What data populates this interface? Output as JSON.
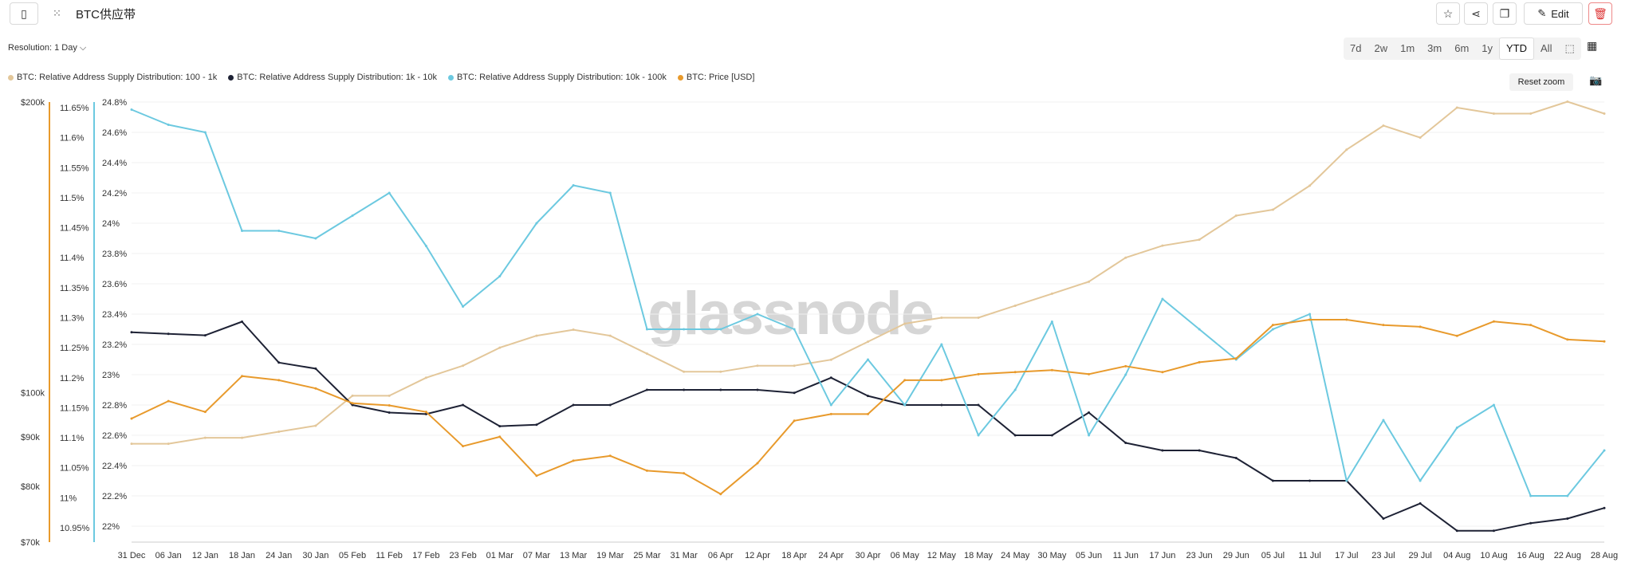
{
  "header": {
    "title": "BTC供应带",
    "edit_label": "Edit"
  },
  "resolution_label": "Resolution: 1 Day",
  "time_ranges": [
    "7d",
    "2w",
    "1m",
    "3m",
    "6m",
    "1y",
    "YTD",
    "All"
  ],
  "active_range": "YTD",
  "reset_zoom_label": "Reset zoom",
  "watermark": "glassnode",
  "chart_data": {
    "type": "line",
    "x_ticks": [
      "31 Dec",
      "06 Jan",
      "12 Jan",
      "18 Jan",
      "24 Jan",
      "30 Jan",
      "05 Feb",
      "11 Feb",
      "17 Feb",
      "23 Feb",
      "01 Mar",
      "07 Mar",
      "13 Mar",
      "19 Mar",
      "25 Mar",
      "31 Mar",
      "06 Apr",
      "12 Apr",
      "18 Apr",
      "24 Apr",
      "30 Apr",
      "06 May",
      "12 May",
      "18 May",
      "24 May",
      "30 May",
      "05 Jun",
      "11 Jun",
      "17 Jun",
      "23 Jun",
      "29 Jun",
      "05 Jul",
      "11 Jul",
      "17 Jul",
      "23 Jul",
      "29 Jul",
      "04 Aug",
      "10 Aug",
      "16 Aug",
      "22 Aug",
      "28 Aug"
    ],
    "y_price_ticks": [
      "$70k",
      "$80k",
      "$90k",
      "$100k",
      "$200k"
    ],
    "y_mid_ticks": [
      "10.95%",
      "11%",
      "11.05%",
      "11.1%",
      "11.15%",
      "11.2%",
      "11.25%",
      "11.3%",
      "11.35%",
      "11.4%",
      "11.45%",
      "11.5%",
      "11.55%",
      "11.6%",
      "11.65%"
    ],
    "y_right_ticks": [
      "22%",
      "22.2%",
      "22.4%",
      "22.6%",
      "22.8%",
      "23%",
      "23.2%",
      "23.4%",
      "23.6%",
      "23.8%",
      "24%",
      "24.2%",
      "24.4%",
      "24.6%",
      "24.8%"
    ],
    "series": [
      {
        "name": "BTC: Relative Address Supply Distribution: 100 - 1k",
        "color": "#e3c79a",
        "axis": "mid",
        "values": [
          11.09,
          11.09,
          11.1,
          11.1,
          11.11,
          11.12,
          11.17,
          11.17,
          11.2,
          11.22,
          11.25,
          11.27,
          11.28,
          11.27,
          11.24,
          11.21,
          11.21,
          11.22,
          11.22,
          11.23,
          11.26,
          11.29,
          11.3,
          11.3,
          11.32,
          11.34,
          11.36,
          11.4,
          11.42,
          11.43,
          11.47,
          11.48,
          11.52,
          11.58,
          11.62,
          11.6,
          11.65,
          11.64,
          11.64,
          11.66,
          11.64
        ]
      },
      {
        "name": "BTC: Relative Address Supply Distribution: 1k - 10k",
        "color": "#1e2235",
        "axis": "right",
        "values": [
          23.28,
          23.27,
          23.26,
          23.35,
          23.08,
          23.04,
          22.8,
          22.75,
          22.74,
          22.8,
          22.66,
          22.67,
          22.8,
          22.8,
          22.9,
          22.9,
          22.9,
          22.9,
          22.88,
          22.98,
          22.86,
          22.8,
          22.8,
          22.8,
          22.6,
          22.6,
          22.75,
          22.55,
          22.5,
          22.5,
          22.45,
          22.3,
          22.3,
          22.3,
          22.05,
          22.15,
          21.97,
          21.97,
          22.02,
          22.05,
          22.12
        ]
      },
      {
        "name": "BTC: Relative Address Supply Distribution: 10k - 100k",
        "color": "#6cc9e0",
        "axis": "right",
        "values": [
          24.75,
          24.65,
          24.6,
          23.95,
          23.95,
          23.9,
          24.05,
          24.2,
          23.85,
          23.45,
          23.65,
          24.0,
          24.25,
          24.2,
          23.3,
          23.3,
          23.3,
          23.4,
          23.3,
          22.8,
          23.1,
          22.8,
          23.2,
          22.6,
          22.9,
          23.35,
          22.6,
          23.0,
          23.5,
          23.3,
          23.1,
          23.3,
          23.4,
          22.3,
          22.7,
          22.3,
          22.65,
          22.8,
          22.2,
          22.2,
          22.5
        ]
      },
      {
        "name": "BTC: Price [USD]",
        "color": "#e89a2c",
        "axis": "price",
        "values": [
          94000,
          98000,
          95500,
          104000,
          103000,
          101000,
          97500,
          97000,
          95500,
          88000,
          90000,
          82000,
          85000,
          86000,
          83000,
          82500,
          78500,
          84500,
          93500,
          95000,
          95000,
          103000,
          103000,
          104500,
          105000,
          105500,
          104500,
          106500,
          105000,
          107500,
          108500,
          117500,
          119000,
          119000,
          117500,
          117000,
          114500,
          118500,
          117500,
          113500,
          113000
        ]
      }
    ]
  }
}
